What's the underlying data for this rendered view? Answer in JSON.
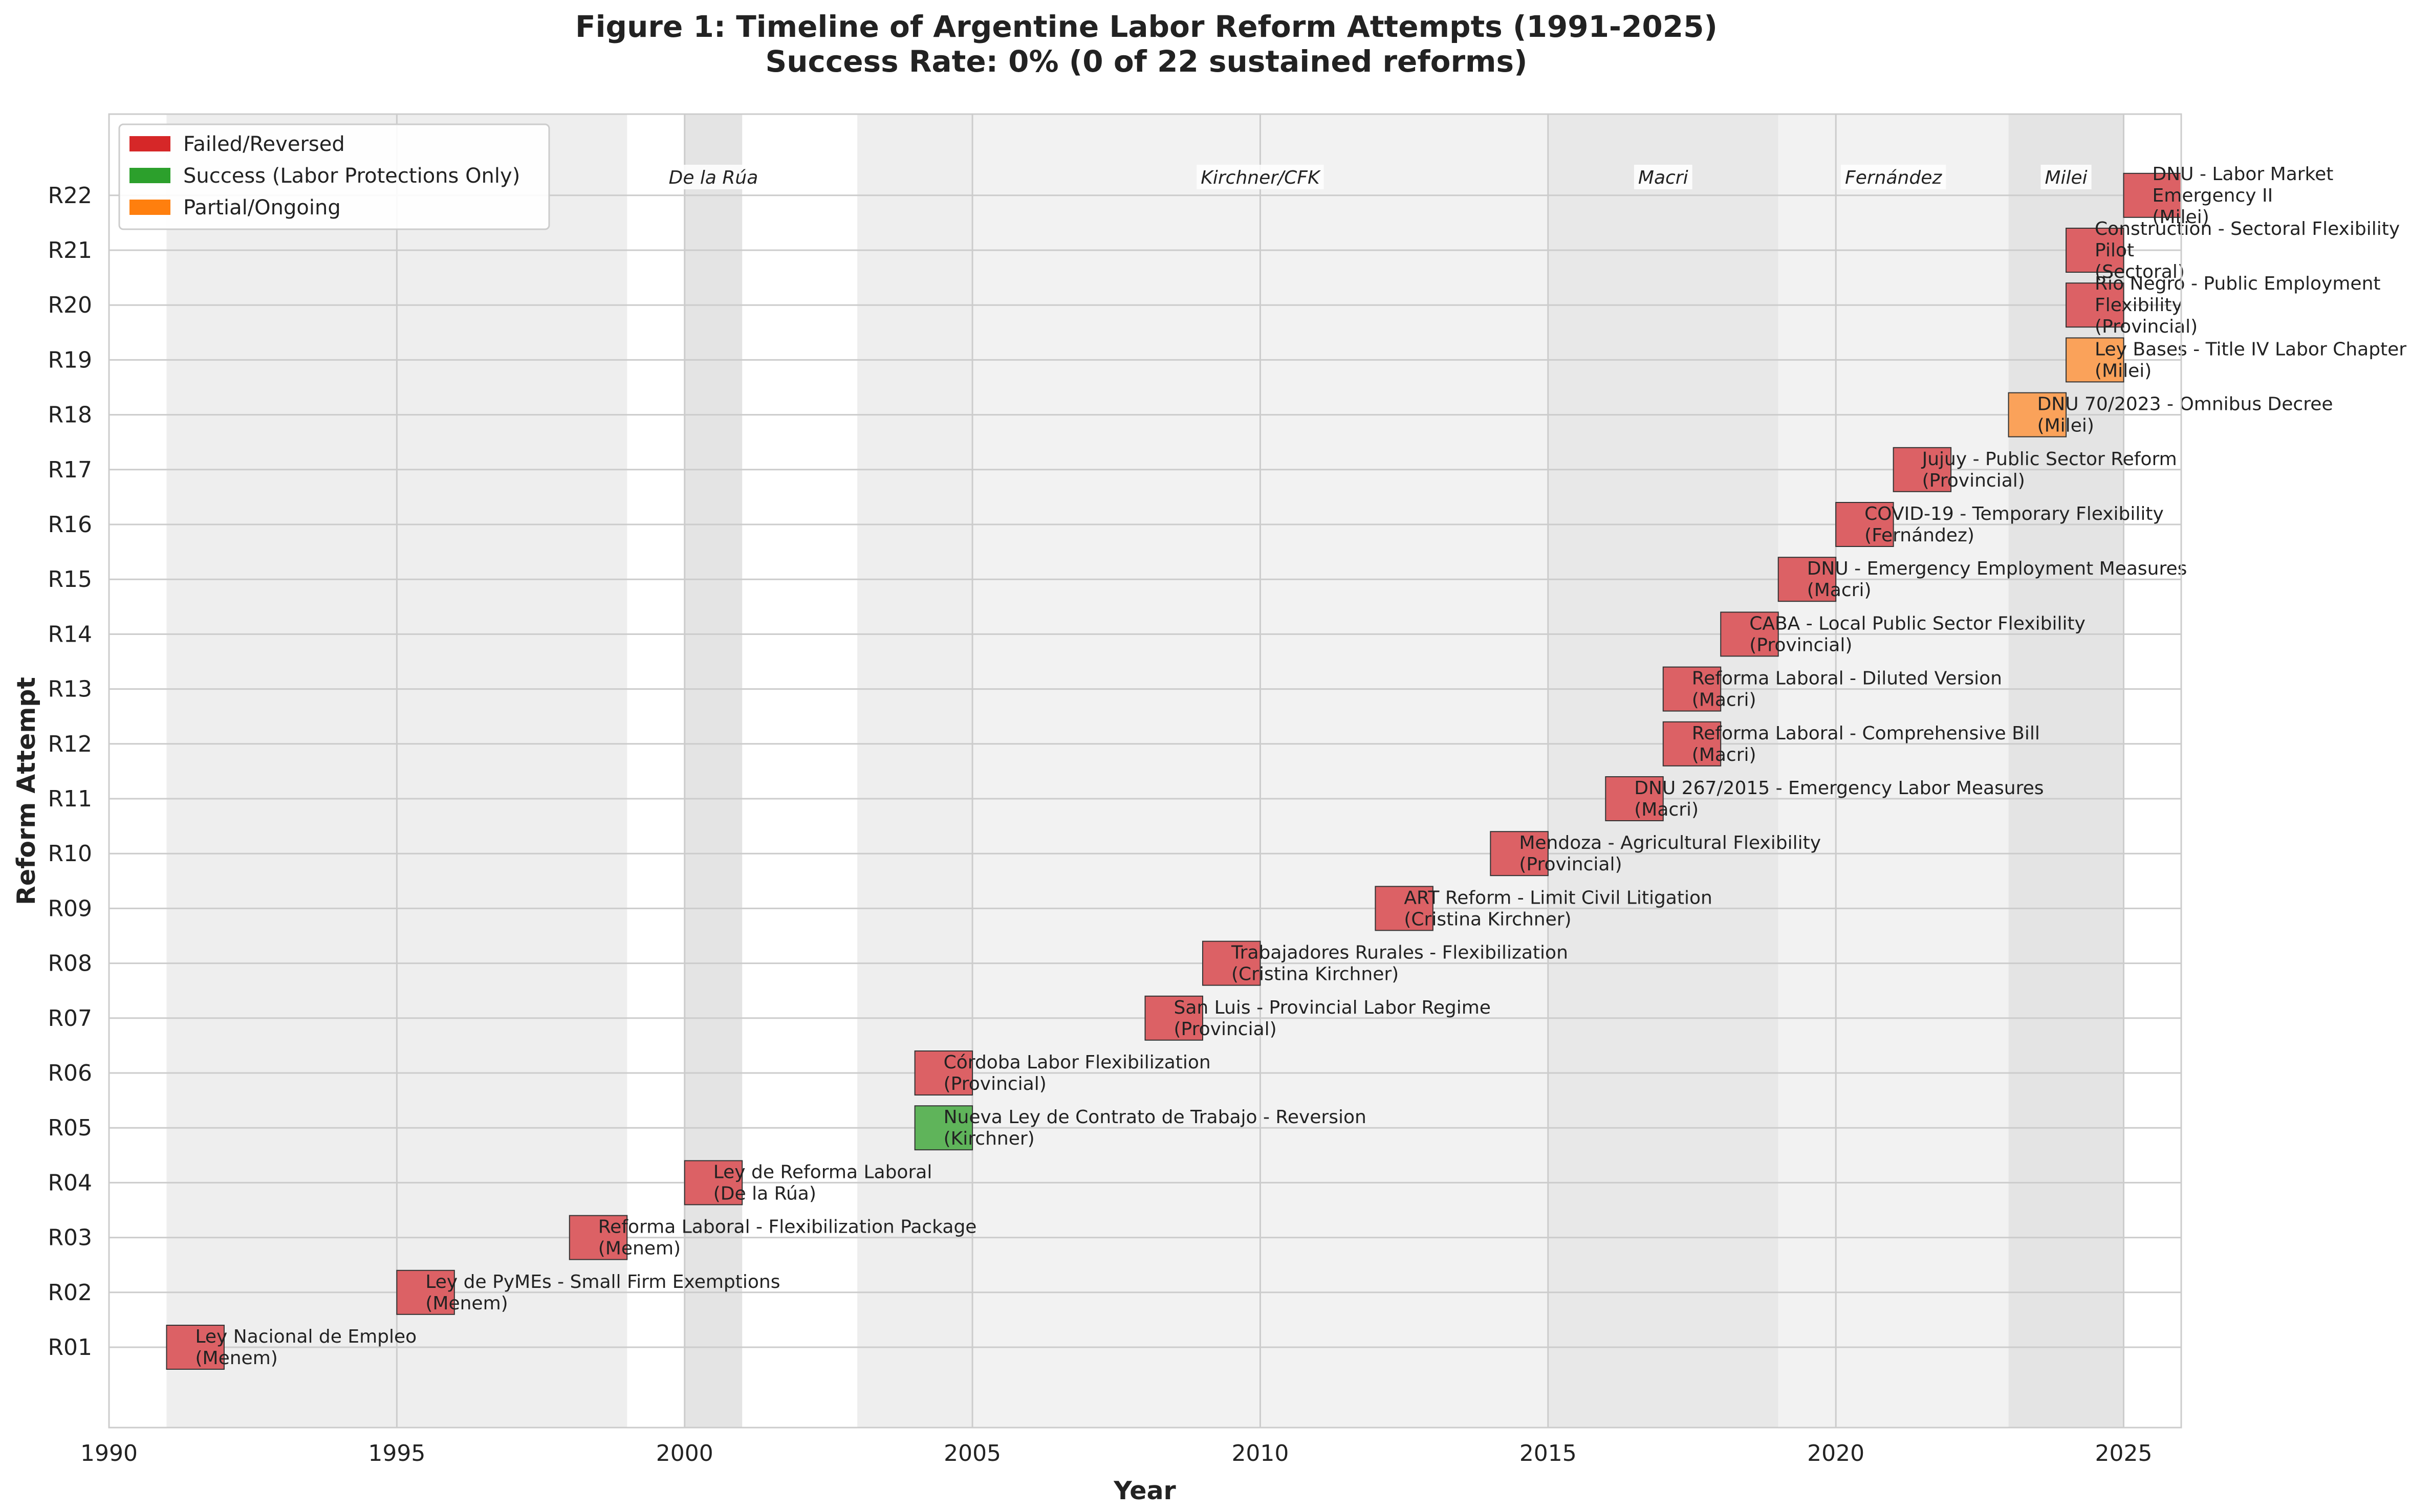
{
  "chart_data": {
    "type": "bar",
    "title": "Figure 1: Timeline of Argentine Labor Reform Attempts (1991-2025)",
    "subtitle": "Success Rate: 0% (0 of 22 sustained reforms)",
    "xlabel": "Year",
    "ylabel": "Reform Attempt",
    "xlim": [
      1990,
      2026
    ],
    "x_ticks": [
      1990,
      1995,
      2000,
      2005,
      2010,
      2015,
      2020,
      2025
    ],
    "grid": true,
    "legend_placement": "top-left",
    "legend": [
      {
        "label": "Failed/Reversed",
        "status": "failed",
        "color": "#d62728"
      },
      {
        "label": "Success (Labor Protections Only)",
        "status": "success",
        "color": "#2ca02c"
      },
      {
        "label": "Partial/Ongoing",
        "status": "partial",
        "color": "#ff7f0e"
      }
    ],
    "eras": [
      {
        "name": "",
        "start": 1991,
        "end": 1999,
        "shade": "#eeeeee"
      },
      {
        "name": "De la Rúa",
        "start": 2000,
        "end": 2001,
        "shade": "#e4e4e4"
      },
      {
        "name": "",
        "start": 2003,
        "end": 2005,
        "shade": "#eeeeee"
      },
      {
        "name": "Kirchner/CFK",
        "start": 2005,
        "end": 2015,
        "shade": "#f2f2f2"
      },
      {
        "name": "Macri",
        "start": 2015,
        "end": 2019,
        "shade": "#e8e8e8"
      },
      {
        "name": "Fernández",
        "start": 2019,
        "end": 2023,
        "shade": "#f2f2f2"
      },
      {
        "name": "Milei",
        "start": 2023,
        "end": 2025,
        "shade": "#e4e4e4"
      }
    ],
    "bar_colors": {
      "failed": "#dc6165",
      "success": "#5fb45a",
      "partial": "#faa25a"
    },
    "reforms": [
      {
        "id": "R01",
        "start": 1991,
        "end": 1992,
        "status": "failed",
        "label": [
          "Ley Nacional de Empleo",
          "(Menem)"
        ]
      },
      {
        "id": "R02",
        "start": 1995,
        "end": 1996,
        "status": "failed",
        "label": [
          "Ley de PyMEs - Small Firm Exemptions",
          "(Menem)"
        ]
      },
      {
        "id": "R03",
        "start": 1998,
        "end": 1999,
        "status": "failed",
        "label": [
          "Reforma Laboral - Flexibilization Package",
          "(Menem)"
        ]
      },
      {
        "id": "R04",
        "start": 2000,
        "end": 2001,
        "status": "failed",
        "label": [
          "Ley de Reforma Laboral",
          "(De la Rúa)"
        ]
      },
      {
        "id": "R05",
        "start": 2004,
        "end": 2005,
        "status": "success",
        "label": [
          "Nueva Ley de Contrato de Trabajo - Reversion",
          "(Kirchner)"
        ]
      },
      {
        "id": "R06",
        "start": 2004,
        "end": 2005,
        "status": "failed",
        "label": [
          "Córdoba Labor Flexibilization",
          "(Provincial)"
        ]
      },
      {
        "id": "R07",
        "start": 2008,
        "end": 2009,
        "status": "failed",
        "label": [
          "San Luis - Provincial Labor Regime",
          "(Provincial)"
        ]
      },
      {
        "id": "R08",
        "start": 2009,
        "end": 2010,
        "status": "failed",
        "label": [
          "Trabajadores Rurales - Flexibilization",
          "(Cristina Kirchner)"
        ]
      },
      {
        "id": "R09",
        "start": 2012,
        "end": 2013,
        "status": "failed",
        "label": [
          "ART Reform - Limit Civil Litigation",
          "(Cristina Kirchner)"
        ]
      },
      {
        "id": "R10",
        "start": 2014,
        "end": 2015,
        "status": "failed",
        "label": [
          "Mendoza - Agricultural Flexibility",
          "(Provincial)"
        ]
      },
      {
        "id": "R11",
        "start": 2016,
        "end": 2017,
        "status": "failed",
        "label": [
          "DNU 267/2015 - Emergency Labor Measures",
          "(Macri)"
        ]
      },
      {
        "id": "R12",
        "start": 2017,
        "end": 2018,
        "status": "failed",
        "label": [
          "Reforma Laboral - Comprehensive Bill",
          "(Macri)"
        ]
      },
      {
        "id": "R13",
        "start": 2017,
        "end": 2018,
        "status": "failed",
        "label": [
          "Reforma Laboral - Diluted Version",
          "(Macri)"
        ]
      },
      {
        "id": "R14",
        "start": 2018,
        "end": 2019,
        "status": "failed",
        "label": [
          "CABA - Local Public Sector Flexibility",
          "(Provincial)"
        ]
      },
      {
        "id": "R15",
        "start": 2019,
        "end": 2020,
        "status": "failed",
        "label": [
          "DNU - Emergency Employment Measures",
          "(Macri)"
        ]
      },
      {
        "id": "R16",
        "start": 2020,
        "end": 2021,
        "status": "failed",
        "label": [
          "COVID-19 - Temporary Flexibility",
          "(Fernández)"
        ]
      },
      {
        "id": "R17",
        "start": 2021,
        "end": 2022,
        "status": "failed",
        "label": [
          "Jujuy - Public Sector Reform",
          "(Provincial)"
        ]
      },
      {
        "id": "R18",
        "start": 2023,
        "end": 2024,
        "status": "partial",
        "label": [
          "DNU 70/2023 - Omnibus Decree",
          "(Milei)"
        ]
      },
      {
        "id": "R19",
        "start": 2024,
        "end": 2025,
        "status": "partial",
        "label": [
          "Ley Bases - Title IV Labor Chapter",
          "(Milei)"
        ]
      },
      {
        "id": "R20",
        "start": 2024,
        "end": 2025,
        "status": "failed",
        "label": [
          "Río Negro - Public Employment",
          "Flexibility",
          "(Provincial)"
        ]
      },
      {
        "id": "R21",
        "start": 2024,
        "end": 2025,
        "status": "failed",
        "label": [
          "Construction - Sectoral Flexibility",
          "Pilot",
          "(Sectoral)"
        ]
      },
      {
        "id": "R22",
        "start": 2025,
        "end": 2026,
        "status": "failed",
        "label": [
          "DNU - Labor Market",
          "Emergency II",
          "(Milei)"
        ]
      }
    ]
  }
}
